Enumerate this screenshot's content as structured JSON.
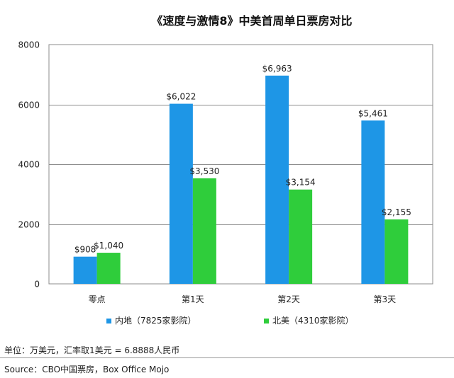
{
  "chart_data": {
    "type": "bar",
    "title": "《速度与激情8》中美首周单日票房对比",
    "categories": [
      "零点",
      "第1天",
      "第2天",
      "第3天"
    ],
    "series": [
      {
        "name": "内地（7825家影院）",
        "color": "#1e96e6",
        "values": [
          908,
          6022,
          6963,
          5461
        ],
        "labels": [
          "$908",
          "$6,022",
          "$6,963",
          "$5,461"
        ]
      },
      {
        "name": "北美（4310家影院）",
        "color": "#2fcd3b",
        "values": [
          1040,
          3530,
          3154,
          2155
        ],
        "labels": [
          "$1,040",
          "$3,530",
          "$3,154",
          "$2,155"
        ]
      }
    ],
    "ylim": [
      0,
      8000
    ],
    "yticks": [
      0,
      2000,
      4000,
      6000,
      8000
    ],
    "xlabel": "",
    "ylabel": "",
    "grid": true,
    "legend": "bottom"
  },
  "notes": {
    "unit": "单位：万美元，汇率取1美元 = 6.8888人民币",
    "source": "Source：CBO中国票房，Box Office Mojo"
  }
}
